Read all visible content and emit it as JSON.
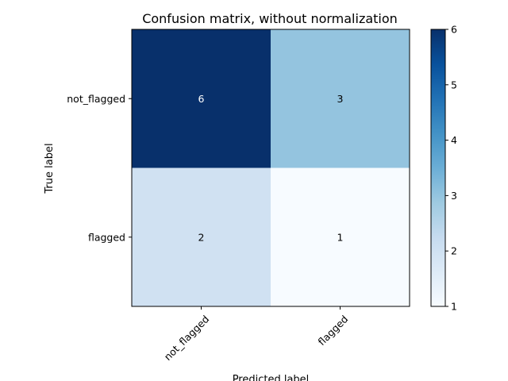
{
  "chart_data": {
    "type": "heatmap",
    "title": "Confusion matrix, without normalization",
    "xlabel": "Predicted label",
    "ylabel": "True label",
    "rows": [
      "not_flagged",
      "flagged"
    ],
    "cols": [
      "not_flagged",
      "flagged"
    ],
    "values": [
      [
        6,
        3
      ],
      [
        2,
        1
      ]
    ],
    "colormap": "Blues",
    "color_range": [
      1,
      6
    ],
    "colorbar_ticks": [
      "1",
      "2",
      "3",
      "4",
      "5",
      "6"
    ],
    "grid": false
  },
  "colors": {
    "low": "#f7fbff",
    "high": "#08306b",
    "text_on_dark": "#ffffff",
    "text_on_light": "#000000"
  }
}
